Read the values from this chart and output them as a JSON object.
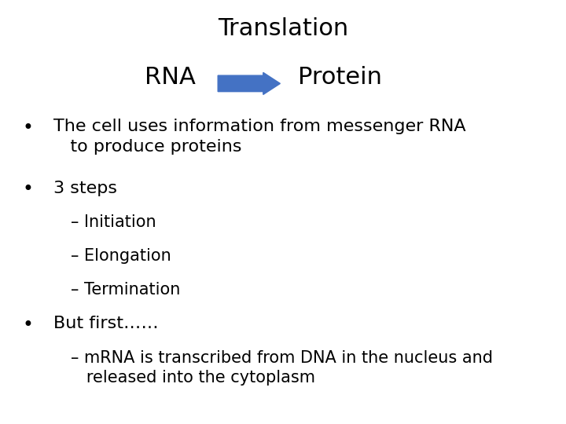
{
  "title_line1": "Translation",
  "title_line2_left": "RNA",
  "title_line2_right": "Protein",
  "arrow_color": "#4472C4",
  "background_color": "#ffffff",
  "text_color": "#000000",
  "title_fontsize": 22,
  "body_fontsize": 16,
  "sub_fontsize": 15,
  "bullet_items_0": "The cell uses information from messenger RNA\n   to produce proteins",
  "bullet_items_1": "3 steps",
  "sub_items": [
    "– Initiation",
    "– Elongation",
    "– Termination"
  ],
  "bullet_item3": "But first……",
  "sub_item_last": "– mRNA is transcribed from DNA in the nucleus and\n   released into the cytoplasm"
}
